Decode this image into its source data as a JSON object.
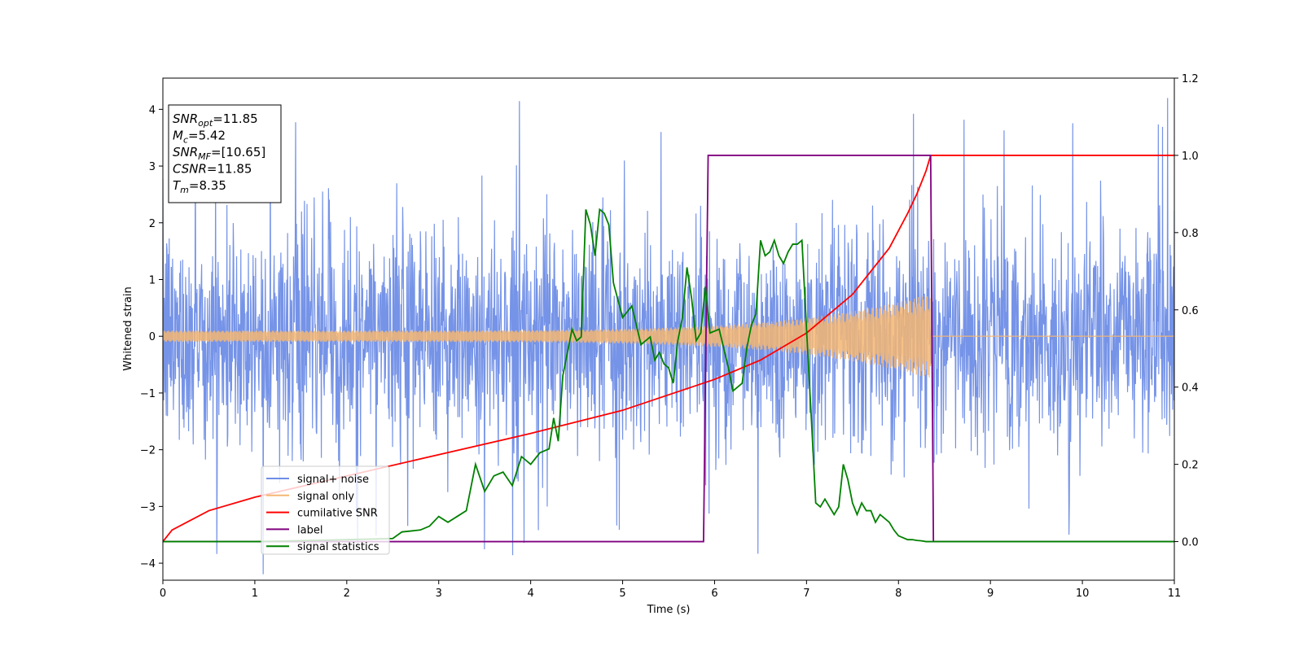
{
  "chart_data": {
    "type": "line",
    "xlabel": "Time (s)",
    "ylabel": "Whitened strain",
    "xlim": [
      0,
      11
    ],
    "ylim": [
      -4.3,
      4.55
    ],
    "y2lim": [
      -0.1,
      1.2
    ],
    "xticks": [
      "0",
      "1",
      "2",
      "3",
      "4",
      "5",
      "6",
      "7",
      "8",
      "9",
      "10",
      "11"
    ],
    "yticks": [
      "4",
      "3",
      "2",
      "1",
      "0",
      "−1",
      "−2",
      "−3",
      "−4"
    ],
    "y2ticks": [
      "1.2",
      "1.0",
      "0.8",
      "0.6",
      "0.4",
      "0.2",
      "0.0"
    ],
    "grid": false,
    "legend_position": "lower-left",
    "info_box": {
      "lines": [
        {
          "base": "SNR",
          "sub": "opt",
          "value": "=11.85"
        },
        {
          "base": "M",
          "sub": "c",
          "value": "=5.42"
        },
        {
          "base": "SNR",
          "sub": "MF",
          "value": "=[10.65]"
        },
        {
          "base": "CSNR",
          "sub": "",
          "value": "=11.85"
        },
        {
          "base": "T",
          "sub": "m",
          "value": "=8.35"
        }
      ]
    },
    "series": [
      {
        "name": "signal+ noise",
        "color": "#6e8de6",
        "axis": "left",
        "kind": "noise",
        "sigma": 1.0,
        "extreme_range": [
          -3.9,
          4.2
        ]
      },
      {
        "name": "signal only",
        "color": "#f5b672",
        "axis": "left",
        "kind": "chirp",
        "merger_time": 8.35,
        "start_amplitude": 0.1,
        "peak_amplitude": 0.75
      },
      {
        "name": "cumilative SNR",
        "color": "#ff0000",
        "axis": "right",
        "x": [
          0,
          0.1,
          0.5,
          1,
          2,
          3,
          4,
          5,
          6,
          6.5,
          7,
          7.5,
          7.9,
          8.1,
          8.2,
          8.3,
          8.35,
          11
        ],
        "y": [
          0,
          0.03,
          0.08,
          0.115,
          0.17,
          0.225,
          0.28,
          0.34,
          0.42,
          0.47,
          0.54,
          0.64,
          0.76,
          0.85,
          0.9,
          0.96,
          1.0,
          1.0
        ]
      },
      {
        "name": "label",
        "color": "#800080",
        "axis": "right",
        "x": [
          0,
          5.88,
          5.93,
          8.35,
          8.38,
          11
        ],
        "y": [
          0,
          0,
          1,
          1,
          0,
          0
        ]
      },
      {
        "name": "signal statistics",
        "color": "#008000",
        "axis": "right",
        "x": [
          0,
          1,
          2,
          2.5,
          2.6,
          2.8,
          2.9,
          3.0,
          3.1,
          3.2,
          3.3,
          3.4,
          3.5,
          3.6,
          3.7,
          3.8,
          3.9,
          4.0,
          4.1,
          4.2,
          4.25,
          4.3,
          4.35,
          4.45,
          4.5,
          4.55,
          4.6,
          4.65,
          4.7,
          4.75,
          4.8,
          4.85,
          4.9,
          5.0,
          5.1,
          5.15,
          5.2,
          5.3,
          5.35,
          5.4,
          5.45,
          5.5,
          5.55,
          5.6,
          5.65,
          5.7,
          5.75,
          5.8,
          5.85,
          5.9,
          5.95,
          6.05,
          6.1,
          6.15,
          6.2,
          6.3,
          6.35,
          6.4,
          6.45,
          6.5,
          6.55,
          6.6,
          6.65,
          6.7,
          6.75,
          6.8,
          6.85,
          6.9,
          6.95,
          7.0,
          7.05,
          7.1,
          7.15,
          7.2,
          7.3,
          7.35,
          7.4,
          7.45,
          7.5,
          7.55,
          7.6,
          7.65,
          7.7,
          7.75,
          7.8,
          7.85,
          7.9,
          7.95,
          8.0,
          8.05,
          8.1,
          8.15,
          8.2,
          8.25,
          8.3,
          8.4,
          8.5,
          8.6,
          8.7,
          8.8,
          9,
          9.5,
          10,
          10.5,
          11
        ],
        "y": [
          0,
          0,
          0.005,
          0.008,
          0.025,
          0.03,
          0.04,
          0.065,
          0.05,
          0.065,
          0.08,
          0.2,
          0.13,
          0.17,
          0.18,
          0.145,
          0.22,
          0.2,
          0.23,
          0.24,
          0.32,
          0.26,
          0.43,
          0.55,
          0.52,
          0.53,
          0.86,
          0.82,
          0.74,
          0.86,
          0.85,
          0.82,
          0.67,
          0.58,
          0.61,
          0.56,
          0.51,
          0.53,
          0.47,
          0.49,
          0.46,
          0.45,
          0.41,
          0.52,
          0.58,
          0.71,
          0.63,
          0.52,
          0.54,
          0.66,
          0.54,
          0.55,
          0.5,
          0.45,
          0.39,
          0.41,
          0.5,
          0.56,
          0.59,
          0.78,
          0.74,
          0.75,
          0.78,
          0.74,
          0.72,
          0.75,
          0.77,
          0.77,
          0.78,
          0.55,
          0.33,
          0.1,
          0.09,
          0.11,
          0.07,
          0.09,
          0.2,
          0.16,
          0.1,
          0.07,
          0.1,
          0.08,
          0.08,
          0.05,
          0.07,
          0.06,
          0.05,
          0.03,
          0.015,
          0.01,
          0.005,
          0.005,
          0.003,
          0.002,
          0,
          0,
          0,
          0,
          0,
          0,
          0,
          0,
          0,
          0,
          0
        ]
      }
    ]
  }
}
